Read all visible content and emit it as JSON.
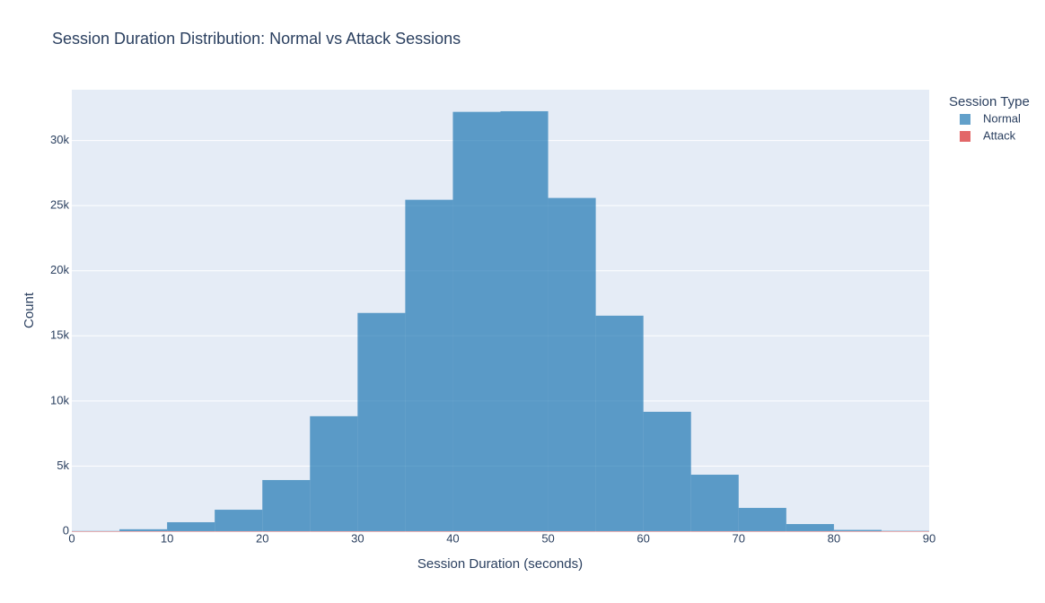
{
  "chart_data": {
    "type": "histogram",
    "title": "Session Duration Distribution: Normal vs Attack Sessions",
    "x_label": "Session Duration (seconds)",
    "y_label": "Count",
    "legend_title": "Session Type",
    "bins": [
      0,
      5,
      10,
      15,
      20,
      25,
      30,
      35,
      40,
      45,
      50,
      55,
      60,
      65,
      70,
      75,
      80,
      85,
      90
    ],
    "series": [
      {
        "name": "Normal",
        "color": "#1f77b4",
        "values": [
          20,
          150,
          690,
          1650,
          3930,
          8830,
          16760,
          25450,
          32200,
          32250,
          25590,
          16550,
          9170,
          4340,
          1790,
          550,
          100,
          30
        ]
      },
      {
        "name": "Attack",
        "color": "#d62728",
        "values": [
          0,
          0,
          0,
          0,
          0,
          0,
          0,
          0,
          0,
          0,
          0,
          0,
          0,
          0,
          0,
          0,
          0,
          0
        ]
      }
    ],
    "opacity": 0.7,
    "xlim": [
      0,
      90
    ],
    "xticks": [
      0,
      10,
      20,
      30,
      40,
      50,
      60,
      70,
      80,
      90
    ],
    "ylim": [
      0,
      33900
    ],
    "yticks": [
      0,
      {
        "value": 5000,
        "label": "5k"
      },
      {
        "value": 10000,
        "label": "10k"
      },
      {
        "value": 15000,
        "label": "15k"
      },
      {
        "value": 20000,
        "label": "20k"
      },
      {
        "value": 25000,
        "label": "25k"
      },
      {
        "value": 30000,
        "label": "30k"
      }
    ],
    "grid": true,
    "legend_position": "right"
  }
}
